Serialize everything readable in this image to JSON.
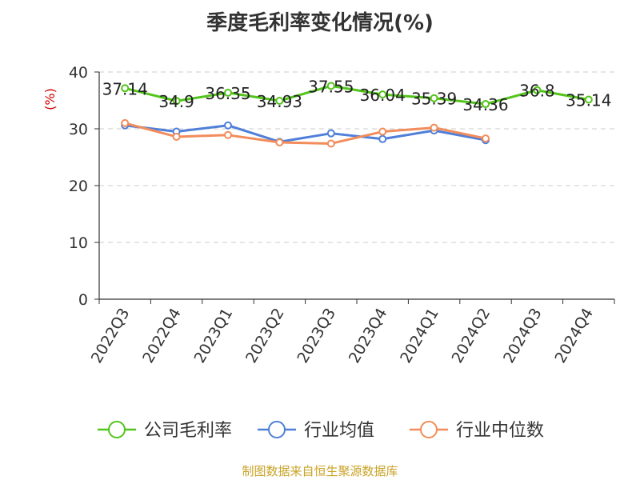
{
  "chart_data": {
    "type": "line",
    "title": "季度毛利率变化情况(%)",
    "ylabel": "(%)",
    "ylim": [
      0,
      40
    ],
    "yticks": [
      0,
      10,
      20,
      30,
      40
    ],
    "grid": true,
    "legend_position": "bottom",
    "categories": [
      "2022Q3",
      "2022Q4",
      "2023Q1",
      "2023Q2",
      "2023Q3",
      "2023Q4",
      "2024Q1",
      "2024Q2",
      "2024Q3",
      "2024Q4"
    ],
    "series": [
      {
        "name": "公司毛利率",
        "color": "#52c41a",
        "values": [
          37.14,
          34.9,
          36.35,
          34.93,
          37.55,
          36.04,
          35.39,
          34.36,
          36.8,
          35.14
        ],
        "labels": [
          "37.14",
          "34.9",
          "36.35",
          "34.93",
          "37.55",
          "36.04",
          "35.39",
          "34.36",
          "36.8",
          "35.14"
        ]
      },
      {
        "name": "行业均值",
        "color": "#4f7fd8",
        "values": [
          30.6,
          29.5,
          30.6,
          27.7,
          29.2,
          28.2,
          29.7,
          28.0,
          null,
          null
        ]
      },
      {
        "name": "行业中位数",
        "color": "#f28c5a",
        "values": [
          31.0,
          28.6,
          28.9,
          27.6,
          27.4,
          29.5,
          30.2,
          28.3,
          null,
          null
        ]
      }
    ]
  },
  "source": "制图数据来自恒生聚源数据库"
}
